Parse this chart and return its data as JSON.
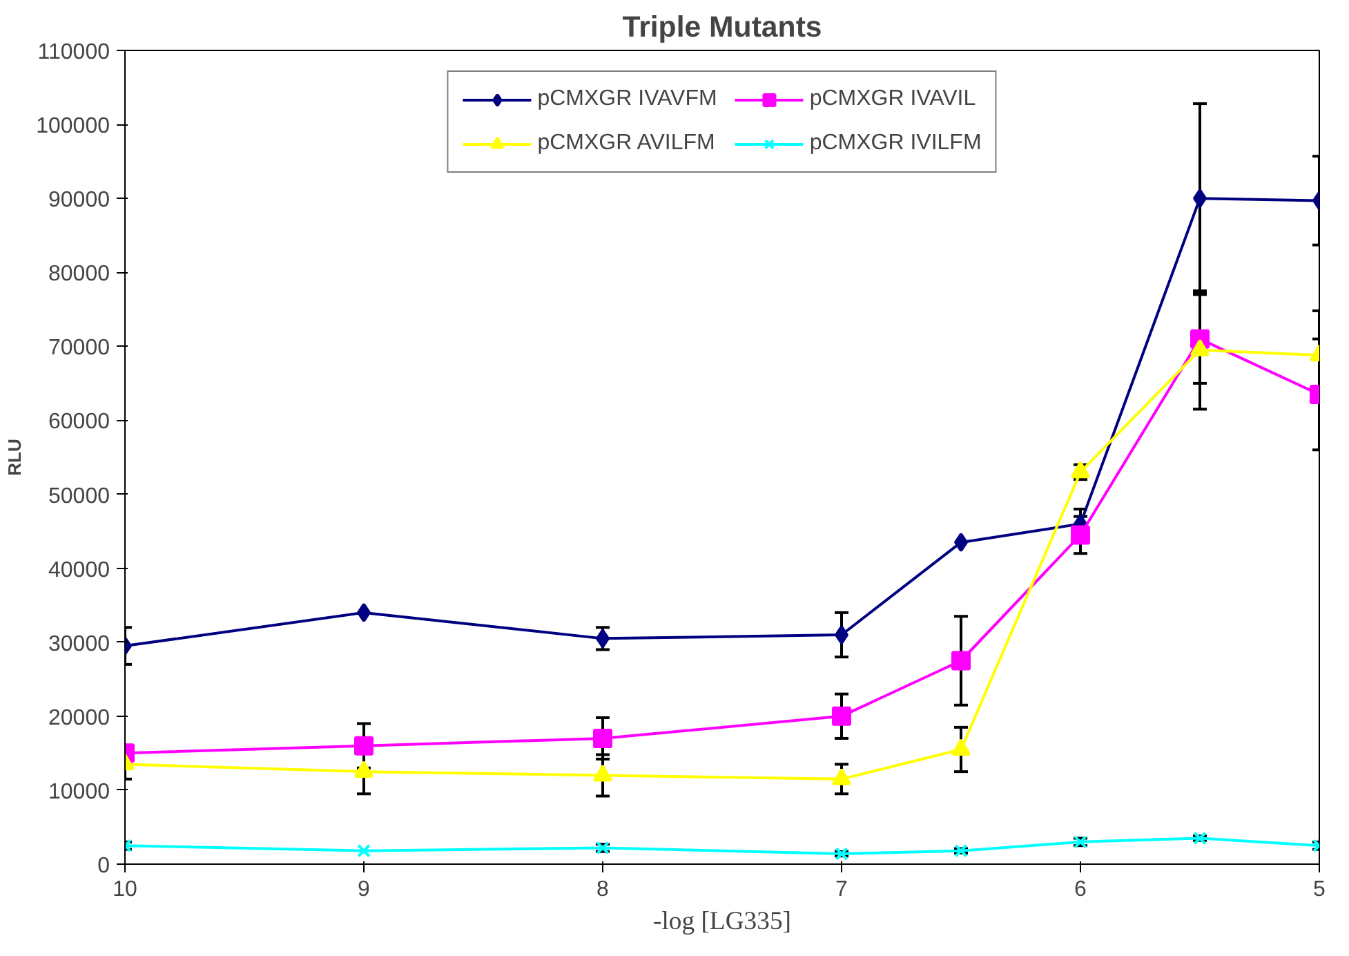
{
  "chart_data": {
    "type": "line",
    "title": "Triple Mutants",
    "xlabel": "-log [LG335]",
    "ylabel": "RLU",
    "x": [
      10,
      9,
      8,
      7,
      6.5,
      6,
      5.5,
      5
    ],
    "xlim": [
      10,
      5
    ],
    "xticks": [
      10,
      9,
      8,
      7,
      6,
      5
    ],
    "ylim": [
      0,
      110000
    ],
    "yticks": [
      0,
      10000,
      20000,
      30000,
      40000,
      50000,
      60000,
      70000,
      80000,
      90000,
      100000,
      110000
    ],
    "grid": false,
    "legend": "top",
    "series": [
      {
        "name": "pCMXGR IVAVFM",
        "color": "#000080",
        "marker": "diamond",
        "values": [
          29500,
          34000,
          30500,
          31000,
          43500,
          46000,
          90000,
          89700
        ],
        "errors": [
          2500,
          null,
          1500,
          3000,
          null,
          2000,
          12800,
          6000
        ]
      },
      {
        "name": "pCMXGR IVAVIL",
        "color": "#ff00ff",
        "marker": "square",
        "values": [
          15000,
          16000,
          17000,
          20000,
          27500,
          44500,
          71000,
          63500
        ],
        "errors": [
          1000,
          3000,
          2800,
          3000,
          6000,
          2500,
          6000,
          7500
        ]
      },
      {
        "name": "pCMXGR AVILFM",
        "color": "#ffff00",
        "marker": "triangle",
        "values": [
          13500,
          12500,
          12000,
          11500,
          15500,
          53000,
          69500,
          68800
        ],
        "errors": [
          2000,
          3000,
          2800,
          2000,
          3000,
          1000,
          8000,
          6000
        ]
      },
      {
        "name": "pCMXGR IVILFM",
        "color": "#00ffff",
        "marker": "cross",
        "values": [
          2500,
          1800,
          2200,
          1400,
          1800,
          3000,
          3500,
          2500
        ],
        "errors": [
          500,
          null,
          500,
          300,
          300,
          500,
          300,
          500
        ]
      }
    ]
  }
}
